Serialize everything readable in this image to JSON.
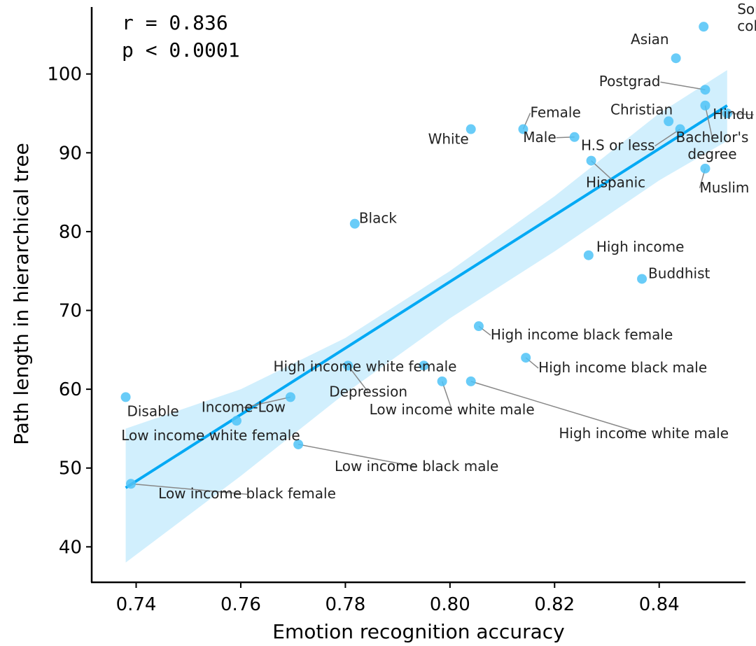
{
  "chart_data": {
    "type": "scatter",
    "title": "",
    "xlabel": "Emotion recognition accuracy",
    "ylabel": "Path length in hierarchical tree",
    "xlim": [
      0.7315,
      0.8565
    ],
    "ylim": [
      35.5,
      108.5
    ],
    "xticks": [
      "0.74",
      "0.76",
      "0.78",
      "0.80",
      "0.82",
      "0.84"
    ],
    "yticks": [
      "40",
      "50",
      "60",
      "70",
      "80",
      "90",
      "100"
    ],
    "stats": [
      "r = 0.836",
      "p < 0.0001"
    ],
    "point_color": "#4fc3f7",
    "line_color": "#03a9f4",
    "band_color": "#b3e5fc",
    "regression": {
      "x": [
        0.738,
        0.853
      ],
      "y": [
        47.5,
        96.0
      ]
    },
    "confidence_band": {
      "upper": [
        [
          0.738,
          55.0
        ],
        [
          0.76,
          60.0
        ],
        [
          0.78,
          66.5
        ],
        [
          0.8,
          75.0
        ],
        [
          0.82,
          84.5
        ],
        [
          0.84,
          95.0
        ],
        [
          0.853,
          100.5
        ]
      ],
      "lower": [
        [
          0.738,
          38.0
        ],
        [
          0.76,
          49.0
        ],
        [
          0.78,
          59.5
        ],
        [
          0.8,
          69.0
        ],
        [
          0.82,
          77.5
        ],
        [
          0.84,
          86.5
        ],
        [
          0.853,
          91.5
        ]
      ]
    },
    "points": [
      {
        "label": "Some college",
        "x": 0.8485,
        "y": 106.0
      },
      {
        "label": "Asian",
        "x": 0.8432,
        "y": 102.0
      },
      {
        "label": "Postgrad",
        "x": 0.8488,
        "y": 98.0
      },
      {
        "label": "Christian",
        "x": 0.8418,
        "y": 94.0
      },
      {
        "label": "Hindu",
        "x": 0.853,
        "y": 95.0
      },
      {
        "label": "Bachelor's degree",
        "x": 0.8488,
        "y": 96.0
      },
      {
        "label": "H.S or less",
        "x": 0.844,
        "y": 93.0
      },
      {
        "label": "Muslim",
        "x": 0.8488,
        "y": 88.0
      },
      {
        "label": "Female",
        "x": 0.814,
        "y": 93.0
      },
      {
        "label": "Male",
        "x": 0.8238,
        "y": 92.0
      },
      {
        "label": "White",
        "x": 0.804,
        "y": 93.0
      },
      {
        "label": "Hispanic",
        "x": 0.827,
        "y": 89.0
      },
      {
        "label": "Black",
        "x": 0.7818,
        "y": 81.0
      },
      {
        "label": "High income",
        "x": 0.8265,
        "y": 77.0
      },
      {
        "label": "Buddhist",
        "x": 0.8367,
        "y": 74.0
      },
      {
        "label": "High income black female",
        "x": 0.8055,
        "y": 68.0
      },
      {
        "label": "High income black male",
        "x": 0.8145,
        "y": 64.0
      },
      {
        "label": "High income white female",
        "x": 0.795,
        "y": 63.0
      },
      {
        "label": "Depression",
        "x": 0.7805,
        "y": 63.0
      },
      {
        "label": "Low income white male",
        "x": 0.7985,
        "y": 61.0
      },
      {
        "label": "High income white male",
        "x": 0.804,
        "y": 61.0
      },
      {
        "label": "Disable",
        "x": 0.738,
        "y": 59.0
      },
      {
        "label": "Income-Low",
        "x": 0.7695,
        "y": 59.0
      },
      {
        "label": "Low income white female",
        "x": 0.7592,
        "y": 56.0
      },
      {
        "label": "Low income black male",
        "x": 0.771,
        "y": 53.0
      },
      {
        "label": "Low income black female",
        "x": 0.739,
        "y": 48.0
      }
    ]
  }
}
